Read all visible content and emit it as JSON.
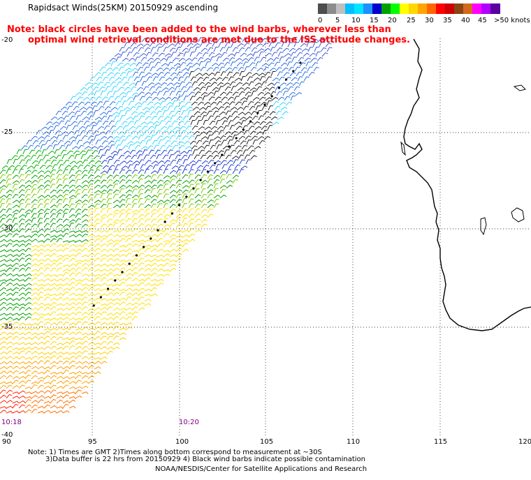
{
  "title": "Rapidsact Winds(25KM) 20150929 ascending",
  "note": {
    "line1": "Note: black circles have been added to the wind barbs, wherever less than",
    "line2": "optimal wind retrieval conditions are met due to the ISS attitude changes."
  },
  "legend": {
    "units": ">50 knots",
    "labels": [
      "0",
      "5",
      "10",
      "15",
      "20",
      "25",
      "30",
      "35",
      "40",
      "45"
    ],
    "colors": [
      "#4d4d4d",
      "#8c8c8c",
      "#bfbfbf",
      "#00bfff",
      "#00e5ff",
      "#1e90ff",
      "#0000cd",
      "#00a000",
      "#00ff00",
      "#ffff00",
      "#ffd700",
      "#ffa500",
      "#ff6600",
      "#ff0000",
      "#cc0000",
      "#8b4513",
      "#d2691e",
      "#ff00ff",
      "#b000ff",
      "#5a00a0"
    ]
  },
  "map": {
    "lat_ticks": [
      "-20",
      "-25",
      "-30",
      "-35",
      "-40"
    ],
    "lon_ticks": [
      "90",
      "95",
      "100",
      "105",
      "110",
      "115",
      "120"
    ],
    "times": [
      "10:18",
      "10:20"
    ]
  },
  "footer": {
    "line1": "Note: 1) Times are GMT 2)Times along bottom correspond to measurement at ~30S",
    "line2": "3)Data buffer is 22 hrs from 20150929 4) Black wind barbs indicate possible contamination",
    "credit": "NOAA/NESDIS/Center for Satellite Applications and Research"
  }
}
